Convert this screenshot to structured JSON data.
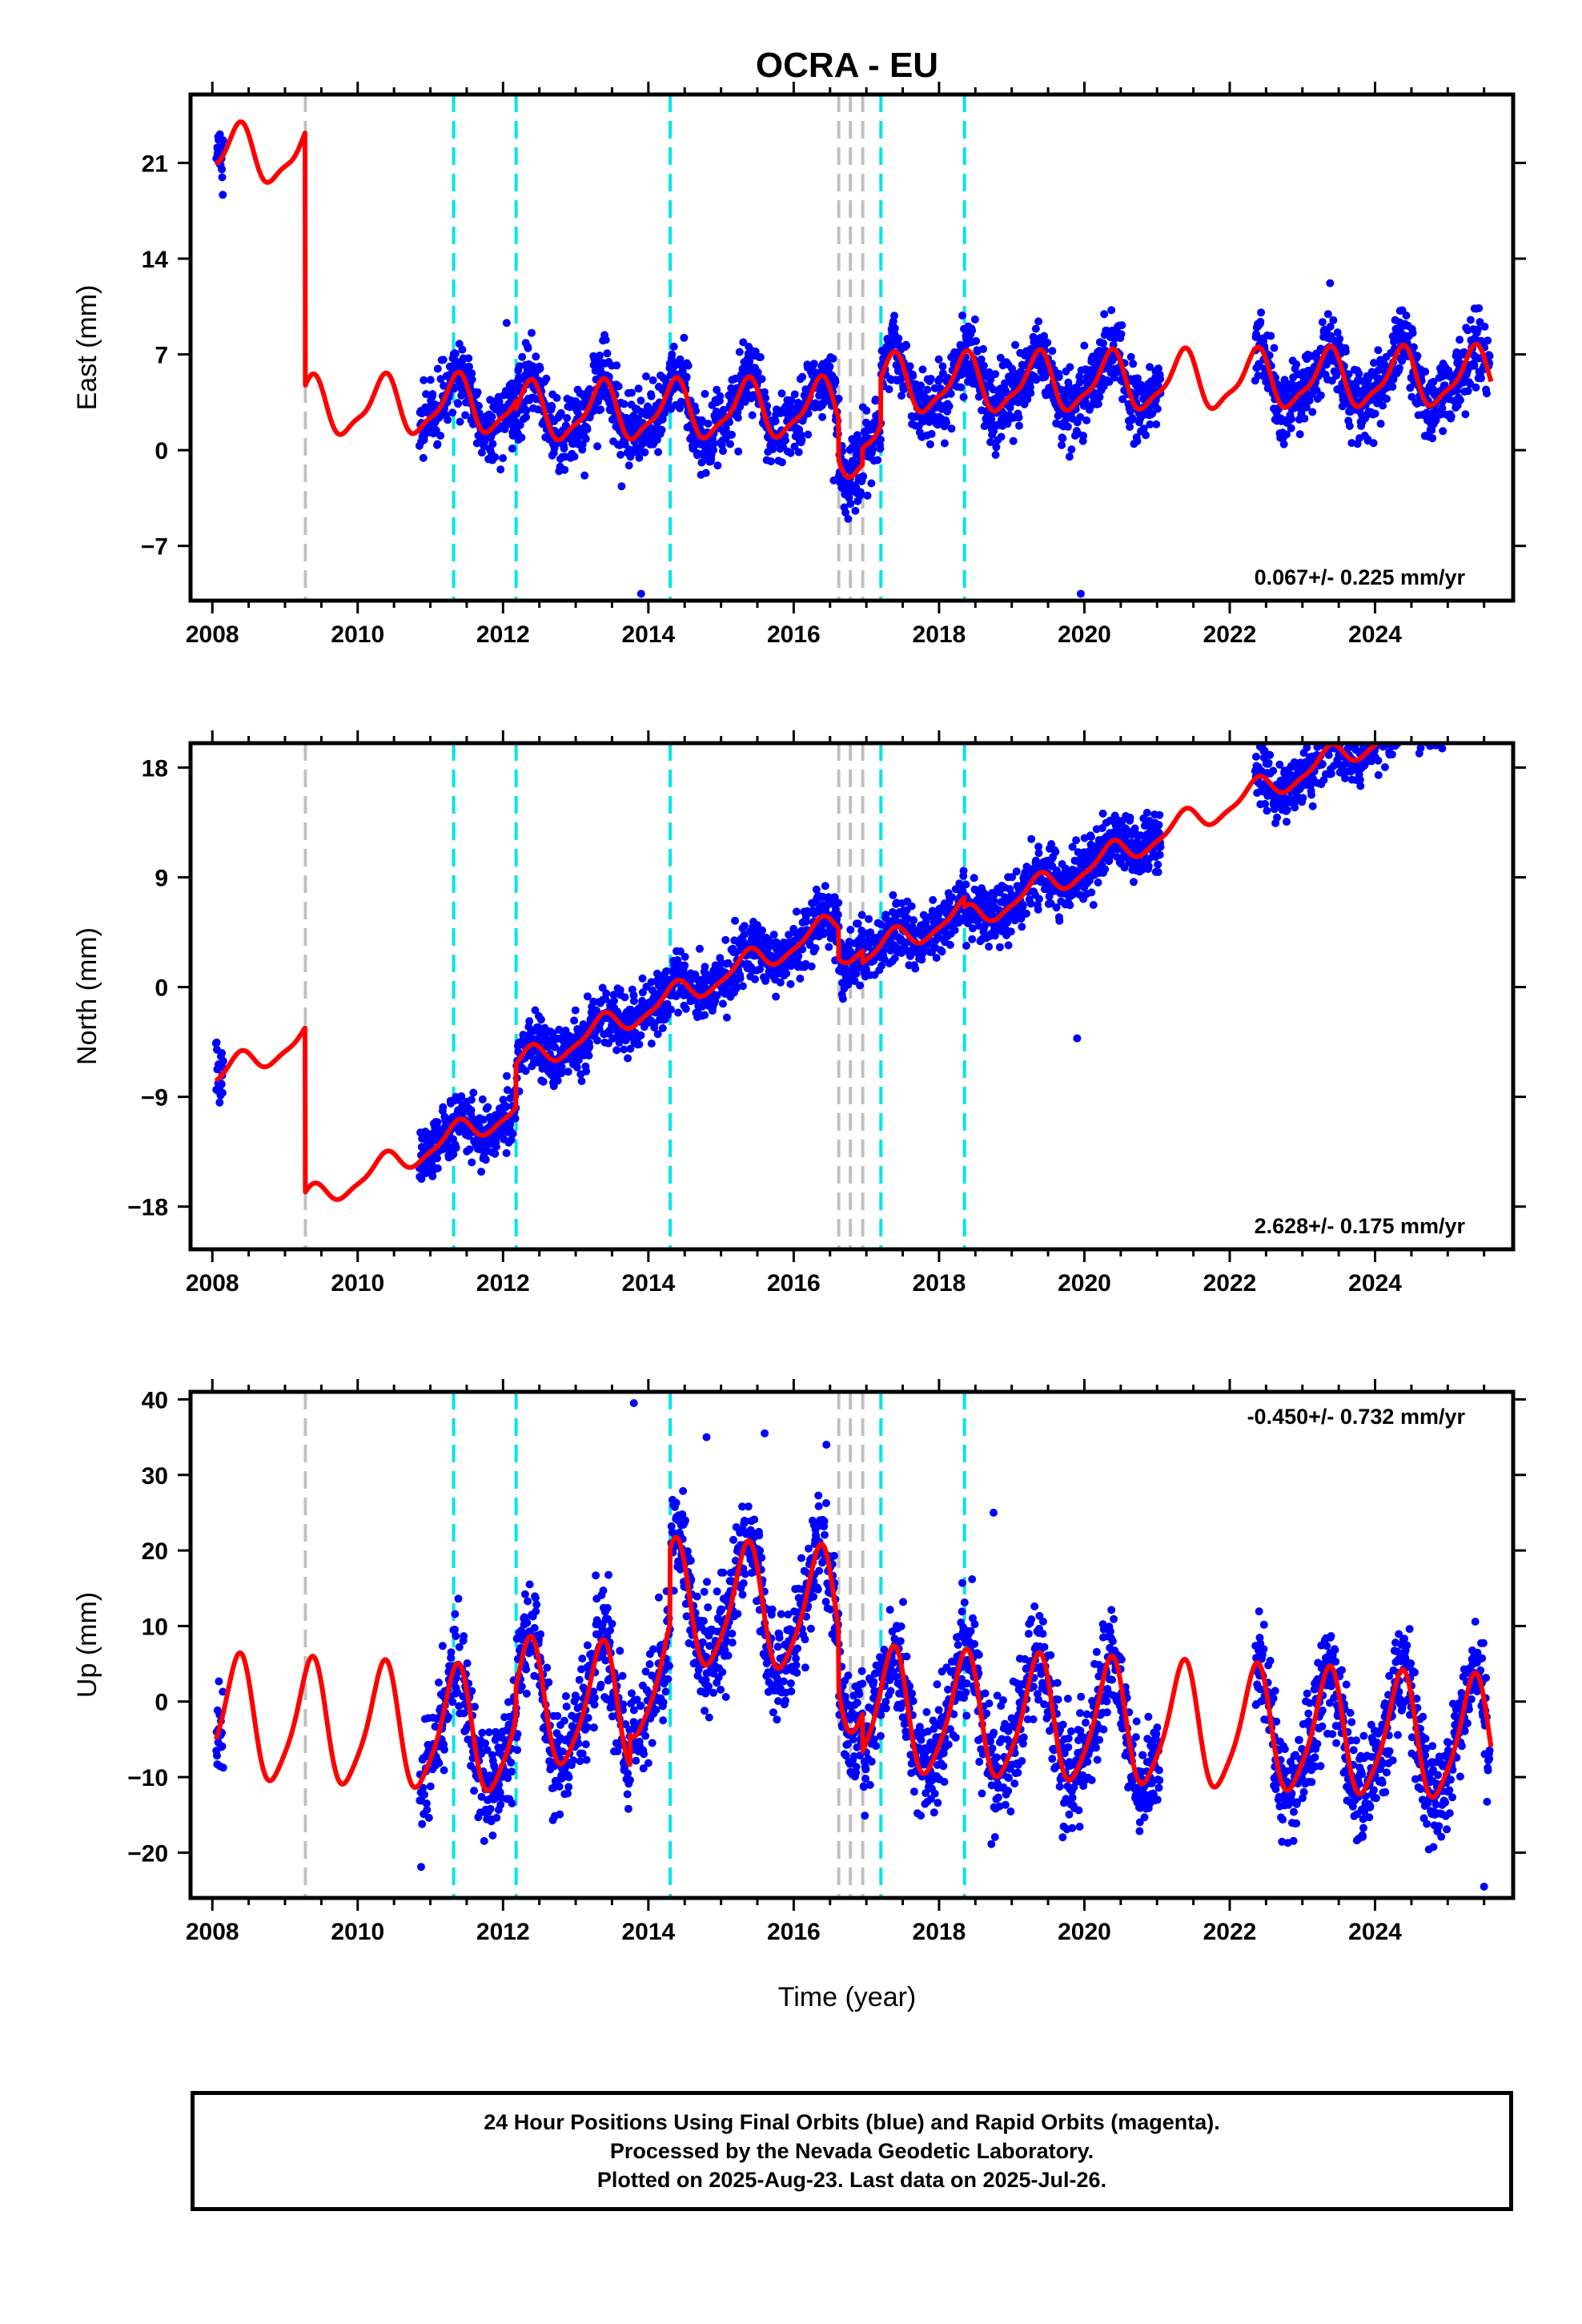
{
  "title": "OCRA - EU",
  "xlabel": "Time (year)",
  "footer": {
    "line1": "24 Hour Positions Using Final Orbits (blue) and Rapid Orbits (magenta).",
    "line2": "Processed by the Nevada Geodetic Laboratory.",
    "line3": "Plotted on 2025-Aug-23. Last data on 2025-Jul-26."
  },
  "colors": {
    "data": "#0000ff",
    "model": "#ff0000",
    "offset_cyan": "#00e5e5",
    "offset_gray": "#c0c0c0"
  },
  "chart_data": [
    {
      "type": "scatter",
      "component": "east",
      "ylabel": "East (mm)",
      "rate": "0.067+/- 0.225 mm/yr",
      "rate_position": "bottom-right",
      "xlim": [
        2007.7,
        2025.9
      ],
      "ylim": [
        -11,
        26
      ],
      "xticks": [
        2008,
        2010,
        2012,
        2014,
        2016,
        2018,
        2020,
        2022,
        2024
      ],
      "yticks": [
        -7,
        0,
        7,
        14,
        21
      ],
      "gray_offsets": [
        2009.28,
        2016.62,
        2016.78,
        2016.95
      ],
      "cyan_offsets": [
        2011.32,
        2012.18,
        2014.3,
        2017.2,
        2018.35
      ],
      "data_segments": [
        [
          2008.05,
          2008.15
        ],
        [
          2010.85,
          2021.05
        ],
        [
          2022.35,
          2025.58
        ]
      ],
      "model": {
        "jumps": [
          [
            2009.28,
            -18.5
          ],
          [
            2012.18,
            -0.6
          ],
          [
            2016.62,
            -3.0
          ],
          [
            2016.95,
            1.2
          ],
          [
            2017.2,
            3.5
          ]
        ],
        "intercept": 21.5,
        "rate": 0.067,
        "amp1": 2.0,
        "amp2": 0.6
      },
      "noise": 1.3,
      "outliers": [
        [
          2013.9,
          -10.5
        ],
        [
          2019.95,
          -10.5
        ],
        [
          2012.05,
          9.3
        ]
      ]
    },
    {
      "type": "scatter",
      "component": "north",
      "ylabel": "North (mm)",
      "rate": "2.628+/- 0.175 mm/yr",
      "rate_position": "bottom-right",
      "xlim": [
        2007.7,
        2025.9
      ],
      "ylim": [
        -21.5,
        20
      ],
      "xticks": [
        2008,
        2010,
        2012,
        2014,
        2016,
        2018,
        2020,
        2022,
        2024
      ],
      "yticks": [
        -18,
        -9,
        0,
        9,
        18
      ],
      "gray_offsets": [
        2009.28,
        2016.62,
        2016.78,
        2016.95
      ],
      "cyan_offsets": [
        2011.32,
        2012.18,
        2014.3,
        2017.2,
        2018.35
      ],
      "data_segments": [
        [
          2008.05,
          2008.15
        ],
        [
          2010.85,
          2021.05
        ],
        [
          2022.35,
          2025.58
        ]
      ],
      "model": {
        "jumps": [
          [
            2009.28,
            -13.5
          ],
          [
            2012.18,
            3.5
          ],
          [
            2016.62,
            -2.5
          ],
          [
            2016.95,
            -1.0
          ],
          [
            2018.35,
            -0.8
          ]
        ],
        "intercept": -7.5,
        "rate": 2.628,
        "amp1": 1.0,
        "amp2": 0.3
      },
      "noise": 1.2,
      "outliers": [
        [
          2016.4,
          7.4
        ],
        [
          2019.9,
          -4.2
        ]
      ]
    },
    {
      "type": "scatter",
      "component": "up",
      "ylabel": "Up (mm)",
      "rate": "-0.450+/- 0.732 mm/yr",
      "rate_position": "top-right",
      "xlim": [
        2007.7,
        2025.9
      ],
      "ylim": [
        -26,
        41
      ],
      "xticks": [
        2008,
        2010,
        2012,
        2014,
        2016,
        2018,
        2020,
        2022,
        2024
      ],
      "yticks": [
        -20,
        -10,
        0,
        10,
        20,
        30,
        40
      ],
      "gray_offsets": [
        2009.28,
        2016.62,
        2016.78,
        2016.95
      ],
      "cyan_offsets": [
        2011.32,
        2012.18,
        2014.3,
        2017.2,
        2018.35
      ],
      "data_segments": [
        [
          2008.05,
          2008.15
        ],
        [
          2010.85,
          2021.05
        ],
        [
          2022.35,
          2025.58
        ]
      ],
      "model": {
        "jumps": [
          [
            2012.18,
            4.0
          ],
          [
            2013.75,
            4.0
          ],
          [
            2014.3,
            10.0
          ],
          [
            2016.62,
            -8.0
          ],
          [
            2016.95,
            -5.0
          ]
        ],
        "intercept": -2.5,
        "rate": -0.45,
        "amp1": 8.0,
        "amp2": 1.5
      },
      "noise": 3.5,
      "outliers": [
        [
          2013.8,
          39.5
        ],
        [
          2015.6,
          35.5
        ],
        [
          2016.45,
          34.0
        ],
        [
          2018.75,
          25.0
        ],
        [
          2025.5,
          -24.5
        ],
        [
          2014.8,
          35.0
        ]
      ]
    }
  ]
}
